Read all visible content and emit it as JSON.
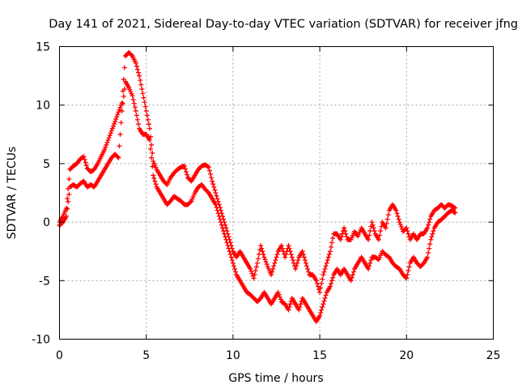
{
  "chart_data": {
    "type": "scatter",
    "title": "Day 141 of 2021, Sidereal Day-to-day VTEC variation (SDTVAR) for receiver jfng",
    "xlabel": "GPS time / hours",
    "ylabel": "SDTVAR / TECUs",
    "xlim": [
      0,
      25
    ],
    "ylim": [
      -10,
      15
    ],
    "xticks": [
      0,
      5,
      10,
      15,
      20,
      25
    ],
    "yticks": [
      -10,
      -5,
      0,
      5,
      10,
      15
    ],
    "grid": true,
    "marker": "+",
    "color": "#ff0000",
    "series": [
      {
        "name": "SDTVAR",
        "x": [
          0.0,
          0.2,
          0.4,
          0.6,
          0.8,
          1.0,
          1.2,
          1.4,
          1.6,
          1.8,
          2.0,
          2.2,
          2.4,
          2.6,
          2.8,
          3.0,
          3.2,
          3.4,
          3.6,
          3.8,
          4.0,
          4.2,
          4.4,
          4.6,
          4.8,
          5.0,
          5.2,
          5.4,
          5.6,
          5.8,
          6.0,
          6.2,
          6.4,
          6.6,
          6.8,
          7.0,
          7.2,
          7.4,
          7.6,
          7.8,
          8.0,
          8.2,
          8.4,
          8.6,
          8.8,
          9.0,
          9.2,
          9.4,
          9.6,
          9.8,
          10.0,
          10.2,
          10.4,
          10.6,
          10.8,
          11.0,
          11.2,
          11.4,
          11.6,
          11.8,
          12.0,
          12.2,
          12.4,
          12.6,
          12.8,
          13.0,
          13.2,
          13.4,
          13.6,
          13.8,
          14.0,
          14.2,
          14.4,
          14.6,
          14.8,
          15.0,
          15.2,
          15.4,
          15.6,
          15.8,
          16.0,
          16.2,
          16.4,
          16.6,
          16.8,
          17.0,
          17.2,
          17.4,
          17.6,
          17.8,
          18.0,
          18.2,
          18.4,
          18.6,
          18.8,
          19.0,
          19.2,
          19.4,
          19.6,
          19.8,
          20.0,
          20.2,
          20.4,
          20.6,
          20.8,
          21.0,
          21.2,
          21.4,
          21.6,
          21.8,
          22.0,
          22.2,
          22.4,
          22.6,
          22.8
        ],
        "upper": [
          0.0,
          0.5,
          1.2,
          4.5,
          4.8,
          5.0,
          5.4,
          5.6,
          4.6,
          4.3,
          4.5,
          5.0,
          5.6,
          6.2,
          7.0,
          7.8,
          8.6,
          9.4,
          10.2,
          14.2,
          14.5,
          14.2,
          13.6,
          12.5,
          11.0,
          9.5,
          8.0,
          5.2,
          4.5,
          4.0,
          3.5,
          3.2,
          3.8,
          4.2,
          4.5,
          4.7,
          4.8,
          3.8,
          3.5,
          4.0,
          4.5,
          4.8,
          4.9,
          4.7,
          3.5,
          2.5,
          1.5,
          0.5,
          -0.5,
          -1.5,
          -2.5,
          -3.0,
          -2.5,
          -3.0,
          -3.5,
          -4.0,
          -4.8,
          -3.5,
          -2.0,
          -3.0,
          -3.8,
          -4.5,
          -3.5,
          -2.5,
          -2.0,
          -3.0,
          -2.0,
          -3.0,
          -4.0,
          -3.0,
          -2.5,
          -3.5,
          -4.5,
          -4.5,
          -5.0,
          -6.0,
          -4.5,
          -3.5,
          -2.5,
          -1.0,
          -1.0,
          -1.5,
          -0.5,
          -1.5,
          -1.5,
          -0.8,
          -1.2,
          -0.5,
          -1.0,
          -1.5,
          0.0,
          -1.0,
          -1.5,
          0.0,
          -0.5,
          1.0,
          1.5,
          1.0,
          0.0,
          -0.8,
          -0.5,
          -1.5,
          -1.0,
          -1.5,
          -1.0,
          -1.0,
          -0.5,
          0.5,
          1.0,
          1.2,
          1.5,
          1.2,
          1.5,
          1.4,
          1.2
        ],
        "lower": [
          -0.3,
          0.0,
          0.5,
          3.0,
          3.2,
          3.0,
          3.3,
          3.5,
          3.0,
          3.2,
          3.0,
          3.5,
          4.0,
          4.5,
          5.0,
          5.5,
          5.8,
          5.5,
          9.5,
          12.0,
          11.5,
          10.8,
          9.5,
          8.0,
          7.5,
          7.5,
          7.0,
          4.0,
          3.0,
          2.5,
          2.0,
          1.5,
          1.8,
          2.2,
          2.0,
          1.8,
          1.5,
          1.5,
          1.8,
          2.5,
          3.0,
          3.2,
          2.8,
          2.5,
          2.0,
          1.5,
          0.5,
          -0.5,
          -1.5,
          -2.5,
          -3.5,
          -4.5,
          -5.0,
          -5.5,
          -6.0,
          -6.2,
          -6.5,
          -6.8,
          -6.5,
          -6.0,
          -6.5,
          -7.0,
          -6.5,
          -6.0,
          -6.8,
          -7.0,
          -7.5,
          -6.5,
          -7.0,
          -7.5,
          -6.5,
          -7.0,
          -7.5,
          -8.0,
          -8.5,
          -8.0,
          -7.0,
          -6.0,
          -5.5,
          -4.5,
          -4.0,
          -4.5,
          -4.0,
          -4.5,
          -5.0,
          -4.0,
          -3.5,
          -3.0,
          -3.5,
          -4.0,
          -3.0,
          -3.0,
          -3.2,
          -2.5,
          -2.8,
          -3.0,
          -3.5,
          -3.8,
          -4.0,
          -4.5,
          -4.8,
          -3.5,
          -3.0,
          -3.5,
          -3.8,
          -3.5,
          -3.0,
          -1.5,
          -0.5,
          0.0,
          0.2,
          0.5,
          0.8,
          1.0,
          0.8
        ]
      }
    ]
  }
}
